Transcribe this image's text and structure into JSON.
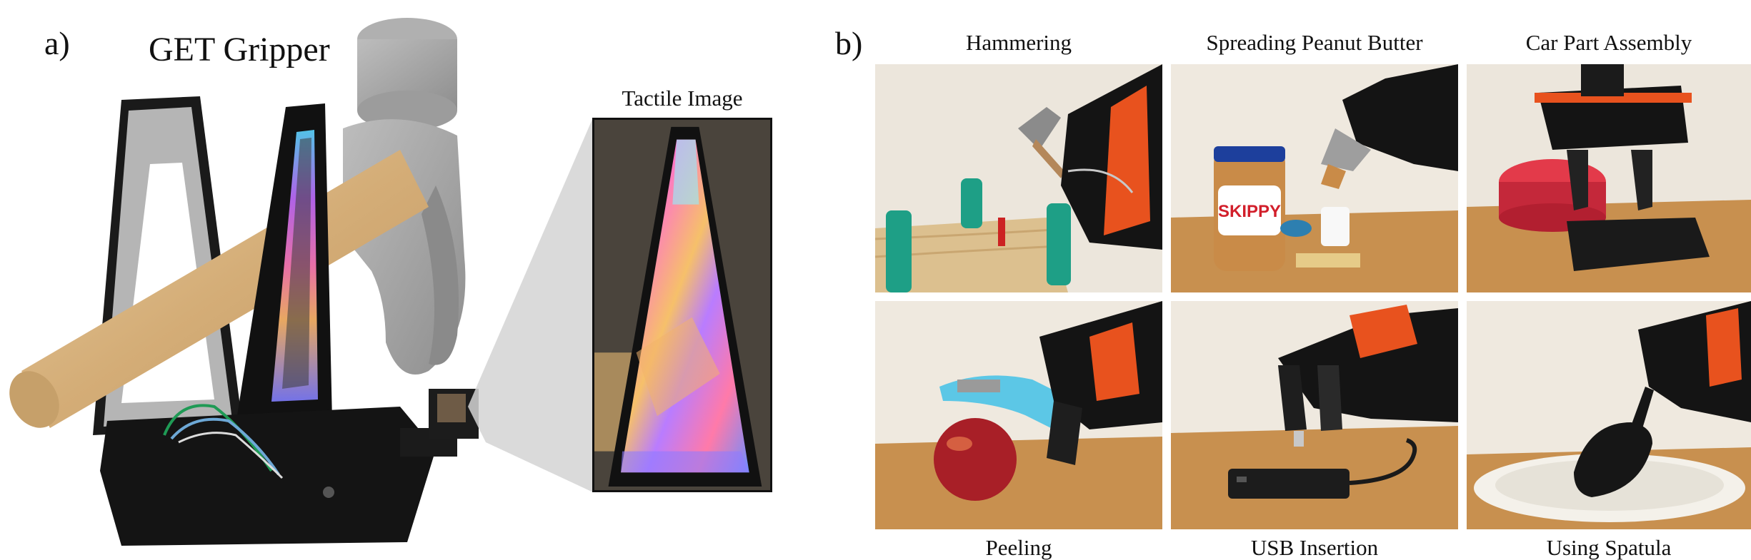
{
  "panel_a": {
    "letter": "a)",
    "title": "GET Gripper",
    "inset_label": "Tactile Image"
  },
  "panel_b": {
    "letter": "b)",
    "tasks": [
      {
        "label": "Hammering"
      },
      {
        "label": "Spreading Peanut Butter"
      },
      {
        "label": "Car Part Assembly"
      },
      {
        "label": "Peeling"
      },
      {
        "label": "USB Insertion"
      },
      {
        "label": "Using Spatula"
      }
    ]
  },
  "jar_brand": "SKIPPY",
  "colors": {
    "wood_table": "#c8904f",
    "wall": "#ece6dc",
    "gripper_black": "#141414",
    "hammer_grey": "#9a9a9a",
    "handle_wood": "#d8b583",
    "accent_orange": "#e8521e",
    "teal_peg": "#1e9f86"
  }
}
